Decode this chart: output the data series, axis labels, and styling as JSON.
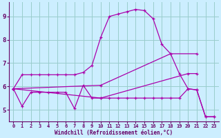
{
  "bg_color": "#cceeff",
  "grid_color": "#99cccc",
  "line_color": "#aa00aa",
  "xlabel": "Windchill (Refroidissement éolien,°C)",
  "xlabel_color": "#660066",
  "tick_color": "#660066",
  "xlim": [
    -0.5,
    23.5
  ],
  "ylim": [
    4.5,
    9.6
  ],
  "yticks": [
    5,
    6,
    7,
    8,
    9
  ],
  "xticks": [
    0,
    1,
    2,
    3,
    4,
    5,
    6,
    7,
    8,
    9,
    10,
    11,
    12,
    13,
    14,
    15,
    16,
    17,
    18,
    19,
    20,
    21,
    22,
    23
  ],
  "line1_x": [
    0,
    1,
    2,
    3,
    4,
    5,
    6,
    7,
    8,
    9,
    10,
    11,
    12,
    13,
    14,
    15,
    16,
    17,
    18,
    19,
    20,
    21,
    22,
    23
  ],
  "line1_y": [
    5.9,
    6.5,
    6.5,
    6.5,
    6.5,
    6.5,
    6.5,
    6.5,
    6.6,
    6.9,
    8.1,
    9.0,
    9.1,
    9.2,
    9.3,
    9.25,
    8.9,
    7.8,
    7.4,
    6.55,
    5.9,
    5.85,
    4.7,
    4.7
  ],
  "line2_x": [
    0,
    1,
    2,
    3,
    4,
    5,
    6,
    7,
    8,
    9,
    10,
    11,
    12,
    13,
    14,
    15,
    16,
    17,
    18,
    19,
    20,
    21,
    22,
    23
  ],
  "line2_y": [
    5.9,
    5.15,
    5.75,
    5.75,
    5.75,
    5.75,
    5.75,
    5.05,
    6.05,
    5.5,
    5.5,
    5.5,
    5.5,
    5.5,
    5.5,
    5.5,
    5.5,
    5.5,
    5.5,
    5.5,
    5.9,
    5.85,
    4.7,
    4.7
  ],
  "line3_x": [
    0,
    10,
    18,
    21
  ],
  "line3_y": [
    5.9,
    6.05,
    7.4,
    7.4
  ],
  "line4_x": [
    0,
    10,
    20,
    21
  ],
  "line4_y": [
    5.9,
    5.5,
    6.55,
    6.55
  ]
}
